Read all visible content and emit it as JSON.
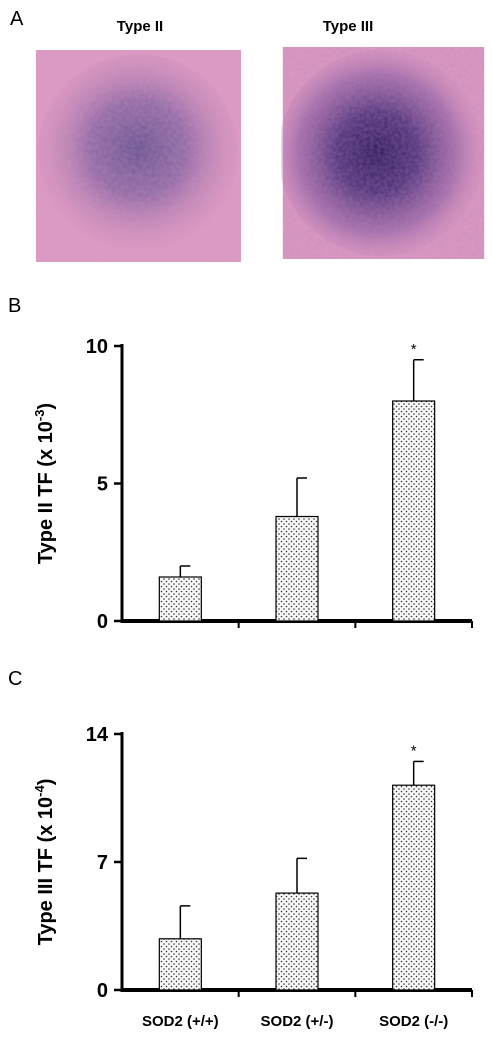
{
  "panels": {
    "a_label": "A",
    "b_label": "B",
    "c_label": "C"
  },
  "micrographs": [
    {
      "title": "Type II",
      "stain": "#6a4a8f"
    },
    {
      "title": "Type III",
      "stain": "#3d2570"
    }
  ],
  "colors": {
    "background_tissue": "#d98aba",
    "bar_fill": "#f7f7f7",
    "dots": "#333333",
    "axis": "#000000"
  },
  "chart_data": [
    {
      "type": "bar",
      "categories": [
        "SOD2 (+/+)",
        "SOD2 (+/-)",
        "SOD2 (-/-)"
      ],
      "values": [
        1.6,
        3.8,
        8.0
      ],
      "errors": [
        0.4,
        1.4,
        1.5
      ],
      "significance": [
        "",
        "",
        "*"
      ],
      "ylabel_main": "Type II TF (x 10",
      "ylabel_sup": "-3",
      "ylabel_end": ")",
      "ylim": [
        0,
        10
      ],
      "yticks": [
        "0",
        "5",
        "10"
      ],
      "show_category_labels": false
    },
    {
      "type": "bar",
      "categories": [
        "SOD2 (+/+)",
        "SOD2 (+/-)",
        "SOD2 (-/-)"
      ],
      "values": [
        2.8,
        5.3,
        11.2
      ],
      "errors": [
        1.8,
        1.9,
        1.3
      ],
      "significance": [
        "",
        "",
        "*"
      ],
      "ylabel_main": "Type III TF (x 10",
      "ylabel_sup": "-4",
      "ylabel_end": ")",
      "ylim": [
        0,
        14
      ],
      "yticks": [
        "0",
        "7",
        "14"
      ],
      "show_category_labels": true
    }
  ]
}
